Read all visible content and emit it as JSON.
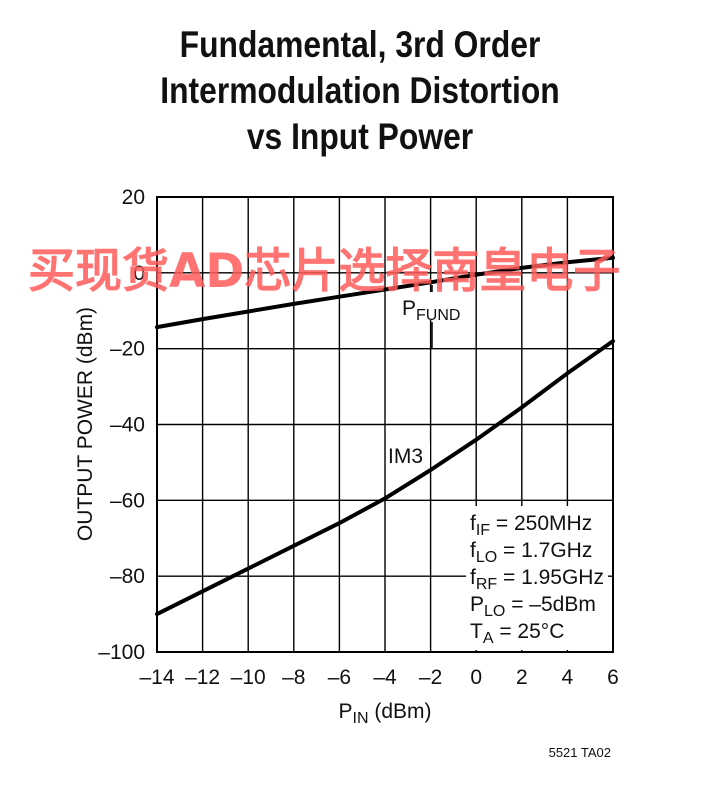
{
  "chart_data": {
    "type": "line",
    "title_lines": [
      "Fundamental, 3rd Order",
      "Intermodulation Distortion",
      "vs Input Power"
    ],
    "xlabel": {
      "main": "P",
      "sub": "IN",
      "rest": " (dBm)"
    },
    "ylabel": "OUTPUT POWER (dBm)",
    "xlim": [
      -14,
      6
    ],
    "ylim": [
      -100,
      20
    ],
    "x_ticks": [
      -14,
      -12,
      -10,
      -8,
      -6,
      -4,
      -2,
      0,
      2,
      4,
      6
    ],
    "x_tick_labels": [
      "–14",
      "–12",
      "–10",
      "–8",
      "–6",
      "–4",
      "–2",
      "0",
      "2",
      "4",
      "6"
    ],
    "y_ticks": [
      20,
      0,
      -20,
      -40,
      -60,
      -80,
      -100
    ],
    "y_tick_labels": [
      "20",
      "0",
      "–20",
      "–40",
      "–60",
      "–80",
      "–100"
    ],
    "grid": true,
    "series": [
      {
        "key": "pfund",
        "x": [
          -14,
          -12,
          -10,
          -8,
          -6,
          -4,
          -2,
          0,
          2,
          4,
          6
        ],
        "y": [
          -14.3,
          -12.2,
          -10.2,
          -8.2,
          -6.3,
          -4.4,
          -2.5,
          -0.5,
          1.3,
          2.8,
          4.0
        ]
      },
      {
        "key": "im3",
        "x": [
          -14,
          -12,
          -10,
          -8,
          -6,
          -4,
          -2,
          0,
          2,
          4,
          6
        ],
        "y": [
          -90.0,
          -84.0,
          -78.0,
          -72.0,
          -66.0,
          -59.5,
          -52.0,
          -44.0,
          -35.5,
          -26.5,
          -18.0
        ]
      }
    ],
    "series_labels": {
      "pfund": {
        "main": "P",
        "sub": "FUND"
      },
      "im3": {
        "main": "IM3"
      }
    },
    "conditions": [
      {
        "main": "f",
        "sub": "IF",
        "rest": " = 250MHz"
      },
      {
        "main": "f",
        "sub": "LO",
        "rest": " = 1.7GHz"
      },
      {
        "main": "f",
        "sub": "RF",
        "rest": " = 1.95GHz"
      },
      {
        "main": "P",
        "sub": "LO",
        "rest": " = –5dBm"
      },
      {
        "main": "T",
        "sub": "A",
        "rest": " = 25°C"
      }
    ]
  },
  "watermark": "买现货AD芯片选择南皇电子",
  "figure_id": "5521 TA02",
  "colors": {
    "line": "#000000",
    "grid": "#000000",
    "watermark": "#ff5a5a"
  }
}
